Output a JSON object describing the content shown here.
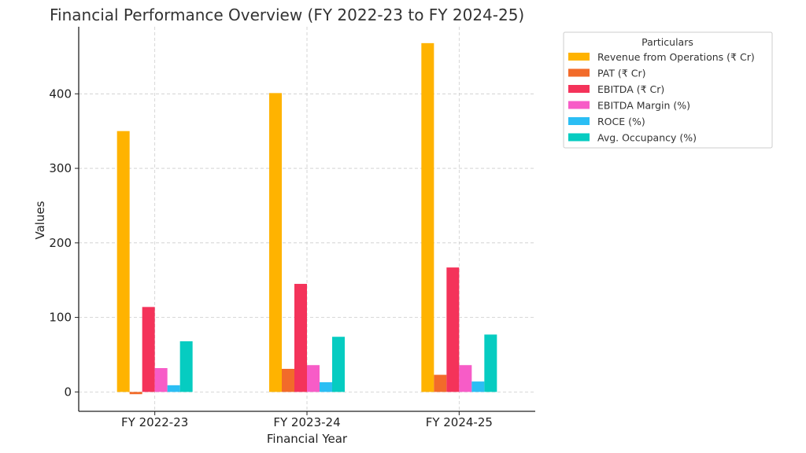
{
  "chart_data": {
    "type": "bar",
    "title": "Financial Performance Overview (FY 2022-23 to FY 2024-25)",
    "xlabel": "Financial Year",
    "ylabel": "Values",
    "categories": [
      "FY 2022-23",
      "FY 2023-24",
      "FY 2024-25"
    ],
    "ylim": [
      -26,
      490
    ],
    "yticks": [
      0,
      100,
      200,
      300,
      400
    ],
    "grid": true,
    "legend": {
      "title": "Particulars",
      "position": "outside-top-right"
    },
    "series": [
      {
        "name": "Revenue from Operations (₹ Cr)",
        "color": "#FFB300",
        "values": [
          350,
          401,
          468
        ]
      },
      {
        "name": "PAT (₹ Cr)",
        "color": "#F26B2A",
        "values": [
          -3,
          31,
          23
        ]
      },
      {
        "name": "EBITDA (₹ Cr)",
        "color": "#F4335A",
        "values": [
          114,
          145,
          167
        ]
      },
      {
        "name": "EBITDA Margin (%)",
        "color": "#F75CC7",
        "values": [
          32,
          36,
          36
        ]
      },
      {
        "name": "ROCE (%)",
        "color": "#2BBEF4",
        "values": [
          9,
          13,
          14
        ]
      },
      {
        "name": "Avg. Occupancy (%)",
        "color": "#06CCC1",
        "values": [
          68,
          74,
          77
        ]
      }
    ]
  }
}
